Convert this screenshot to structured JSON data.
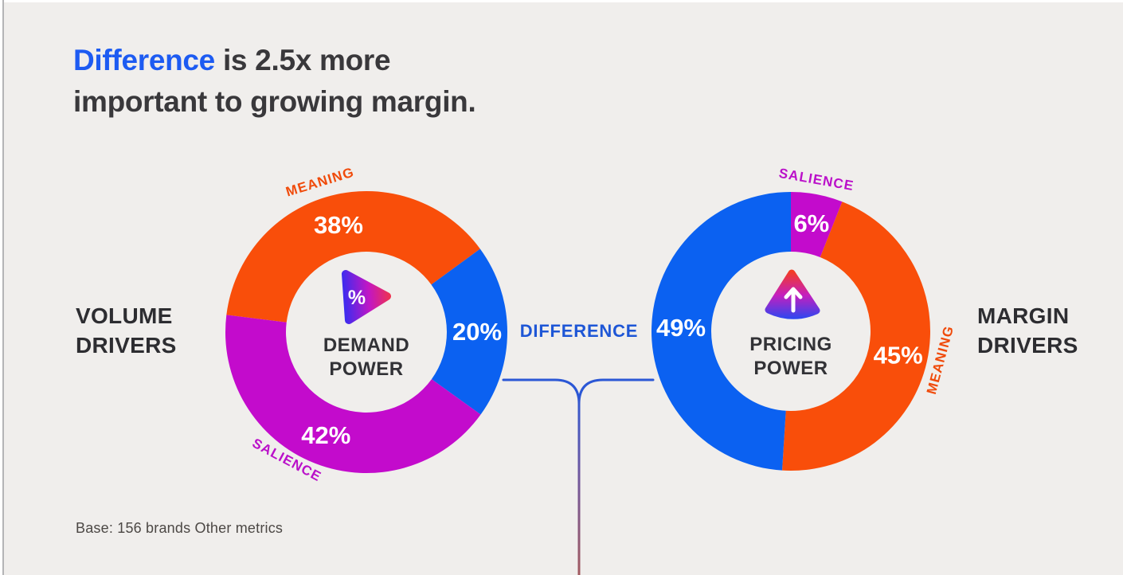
{
  "title": {
    "highlight": "Difference",
    "line1_rest": " is 2.5x more",
    "line2": "important to growing margin.",
    "highlight_color": "#1d5bf2",
    "text_color": "#39383b"
  },
  "side_labels": {
    "left": {
      "line1": "VOLUME",
      "line2": "DRIVERS"
    },
    "right": {
      "line1": "MARGIN",
      "line2": "DRIVERS"
    }
  },
  "connector": {
    "label": "DIFFERENCE",
    "color": "#1e56d6"
  },
  "footer": {
    "text": "Base: 156 brands Other metrics"
  },
  "colors": {
    "background": "#f0eeec",
    "meaning_orange": "#f94e0a",
    "difference_blue": "#0b61f1",
    "salience_magenta": "#c30bcc"
  },
  "chart_data": [
    {
      "type": "pie",
      "variant": "donut",
      "title": "DEMAND POWER",
      "center_icon": "percent-play-triangle-icon",
      "start_angle": 277,
      "slices": [
        {
          "label": "MEANING",
          "value": 38,
          "color": "#f94e0a"
        },
        {
          "label": "DIFFERENCE",
          "value": 20,
          "color": "#0b61f1"
        },
        {
          "label": "SALIENCE",
          "value": 42,
          "color": "#c30bcc"
        }
      ]
    },
    {
      "type": "pie",
      "variant": "donut",
      "title": "PRICING POWER",
      "center_icon": "up-arrow-triangle-icon",
      "start_angle": 0,
      "slices": [
        {
          "label": "SALIENCE",
          "value": 6,
          "color": "#c30bcc"
        },
        {
          "label": "MEANING",
          "value": 45,
          "color": "#f94e0a"
        },
        {
          "label": "DIFFERENCE",
          "value": 49,
          "color": "#0b61f1"
        }
      ]
    }
  ]
}
